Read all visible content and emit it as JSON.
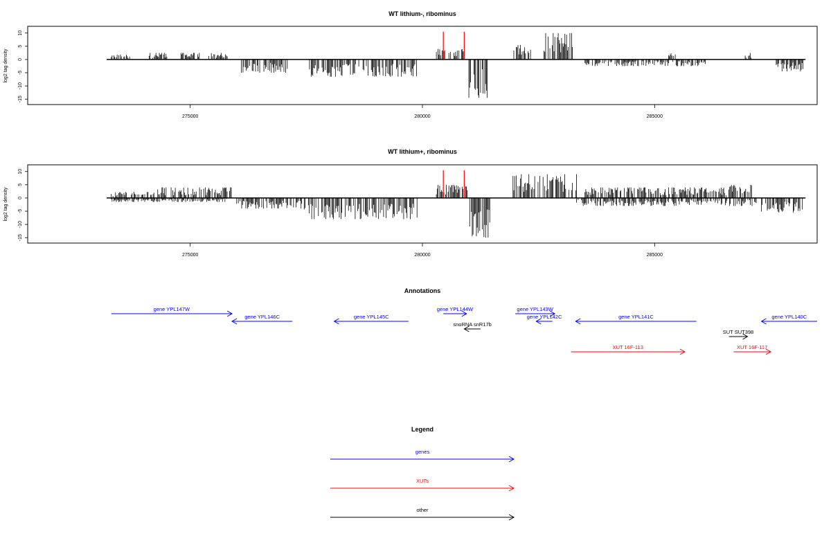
{
  "chart_data": [
    {
      "type": "bar",
      "title": "WT lithium-, ribominus",
      "ylabel": "log2 tag density",
      "xlim": [
        271500,
        288500
      ],
      "ylim": [
        -16,
        11.5
      ],
      "x_ticks": [
        275000,
        280000,
        285000
      ],
      "y_ticks": [
        10,
        5,
        0,
        -5,
        -10,
        -15
      ],
      "grid": false,
      "marker_lines": {
        "color": "#ff0000",
        "x": [
          280450,
          280900
        ],
        "height": 10.5
      },
      "positive_segments": [
        {
          "start": 273300,
          "end": 273700,
          "level": 2.0
        },
        {
          "start": 274100,
          "end": 274500,
          "level": 2.5
        },
        {
          "start": 274800,
          "end": 275200,
          "level": 2.5
        },
        {
          "start": 275400,
          "end": 275800,
          "level": 2.5
        },
        {
          "start": 280300,
          "end": 280950,
          "level": 4.0
        },
        {
          "start": 281950,
          "end": 282450,
          "level": 5.5
        },
        {
          "start": 282600,
          "end": 283250,
          "level": 10.0
        },
        {
          "start": 285300,
          "end": 285450,
          "level": 3.0
        },
        {
          "start": 286950,
          "end": 287100,
          "level": 2.5
        }
      ],
      "negative_segments": [
        {
          "start": 276100,
          "end": 277100,
          "level": -5.0
        },
        {
          "start": 277550,
          "end": 279900,
          "level": -6.5
        },
        {
          "start": 281000,
          "end": 281400,
          "level": -14.5
        },
        {
          "start": 283500,
          "end": 286100,
          "level": -2.5
        },
        {
          "start": 287600,
          "end": 288200,
          "level": -4.5
        }
      ]
    },
    {
      "type": "bar",
      "title": "WT lithium+, ribominus",
      "ylabel": "log2 tag density",
      "xlim": [
        271500,
        288500
      ],
      "ylim": [
        -16,
        11.5
      ],
      "x_ticks": [
        275000,
        280000,
        285000
      ],
      "y_ticks": [
        10,
        5,
        0,
        -5,
        -10,
        -15
      ],
      "grid": false,
      "marker_lines": {
        "color": "#ff0000",
        "x": [
          280450,
          280900
        ],
        "height": 10.5
      },
      "positive_segments": [
        {
          "start": 273300,
          "end": 274300,
          "level": 2.5
        },
        {
          "start": 274300,
          "end": 275900,
          "level": 4.0
        },
        {
          "start": 280300,
          "end": 281000,
          "level": 5.0
        },
        {
          "start": 281950,
          "end": 283350,
          "level": 9.0
        },
        {
          "start": 283500,
          "end": 286600,
          "level": 4.0
        },
        {
          "start": 286600,
          "end": 287100,
          "level": 5.0
        }
      ],
      "negative_segments": [
        {
          "start": 273300,
          "end": 275800,
          "level": -1.5
        },
        {
          "start": 276000,
          "end": 277400,
          "level": -4.0
        },
        {
          "start": 277400,
          "end": 279900,
          "level": -8.0
        },
        {
          "start": 281000,
          "end": 281450,
          "level": -15.0
        },
        {
          "start": 283300,
          "end": 287200,
          "level": -3.0
        },
        {
          "start": 287300,
          "end": 288200,
          "level": -5.5
        }
      ]
    }
  ],
  "annotations": {
    "title": "Annotations",
    "items": [
      {
        "label": "gene YPL147W",
        "start": 273300,
        "end": 275900,
        "color": "#0000ff",
        "row": 0
      },
      {
        "label": "gene YPL146C",
        "start": 277200,
        "end": 275900,
        "color": "#0000ff",
        "row": 1
      },
      {
        "label": "gene YPL145C",
        "start": 279700,
        "end": 278100,
        "color": "#0000ff",
        "row": 1
      },
      {
        "label": "gene YPL144W",
        "start": 280450,
        "end": 280950,
        "color": "#0000ff",
        "row": 0
      },
      {
        "label": "gene YPL143W",
        "start": 282000,
        "end": 282850,
        "color": "#0000ff",
        "row": 0
      },
      {
        "label": "gene YPL142C",
        "start": 282800,
        "end": 282450,
        "color": "#0000ff",
        "row": 1
      },
      {
        "label": "gene YPL141C",
        "start": 285900,
        "end": 283300,
        "color": "#0000ff",
        "row": 1
      },
      {
        "label": "gene YPL140C",
        "start": 288500,
        "end": 287300,
        "color": "#0000ff",
        "row": 1
      },
      {
        "label": "snoRNA snR17b",
        "start": 281250,
        "end": 280900,
        "color": "#000000",
        "row": 2
      },
      {
        "label": "SUT SUT398",
        "start": 286600,
        "end": 287000,
        "color": "#000000",
        "row": 3
      },
      {
        "label": "XUT 16F-113",
        "start": 283200,
        "end": 285650,
        "color": "#ff0000",
        "row": 5
      },
      {
        "label": "XUT 16F-117",
        "start": 286700,
        "end": 287500,
        "color": "#ff0000",
        "row": 5
      }
    ]
  },
  "legend": {
    "title": "Legend",
    "items": [
      {
        "label": "genes",
        "color": "#0000ff"
      },
      {
        "label": "XUTs",
        "color": "#ff0000"
      },
      {
        "label": "other",
        "color": "#000000"
      }
    ]
  }
}
